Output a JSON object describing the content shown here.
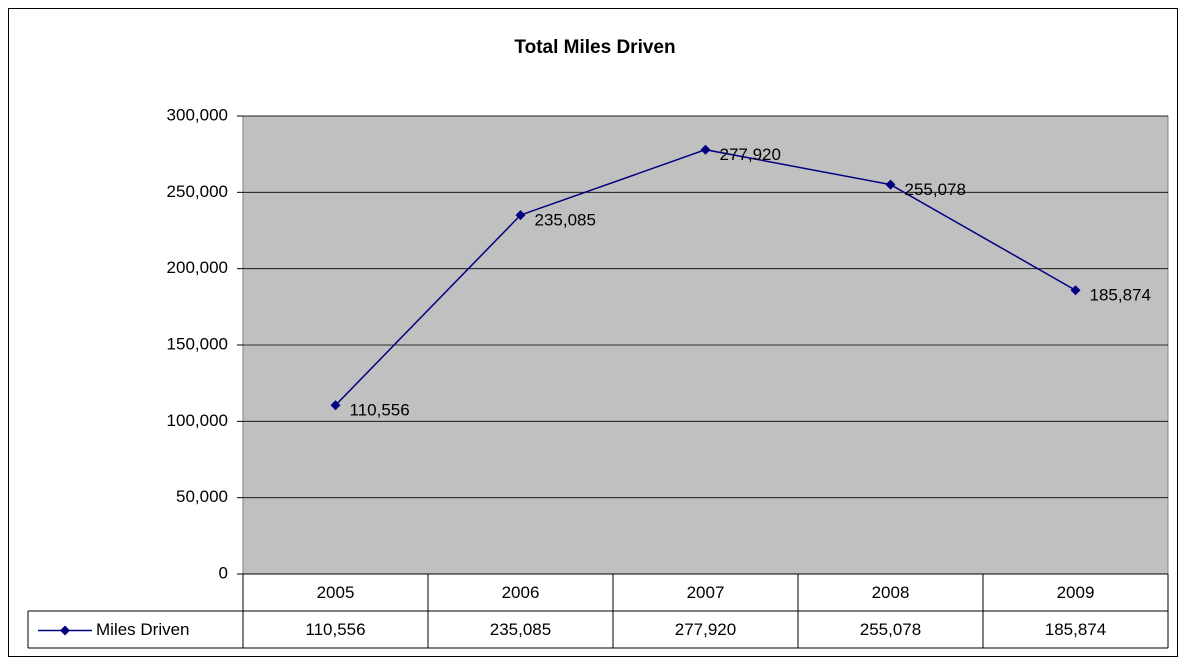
{
  "chart_data": {
    "type": "line",
    "title": "Total Miles Driven",
    "categories": [
      "2005",
      "2006",
      "2007",
      "2008",
      "2009"
    ],
    "series": [
      {
        "name": "Miles Driven",
        "color": "#000080",
        "values": [
          110556,
          235085,
          277920,
          255078,
          185874
        ],
        "value_labels": [
          "110,556",
          "235,085",
          "277,920",
          "255,078",
          "185,874"
        ]
      }
    ],
    "ylim": [
      0,
      300000
    ],
    "yticks": [
      0,
      {
        "value": 50000,
        "label": "50,000"
      },
      {
        "value": 100000,
        "label": "100,000"
      },
      {
        "value": 150000,
        "label": "150,000"
      },
      {
        "value": 200000,
        "label": "200,000"
      },
      {
        "value": 250000,
        "label": "250,000"
      },
      {
        "value": 300000,
        "label": "300,000"
      }
    ],
    "grid": true,
    "plot_background": "#c0c0c0",
    "data_table": true
  }
}
